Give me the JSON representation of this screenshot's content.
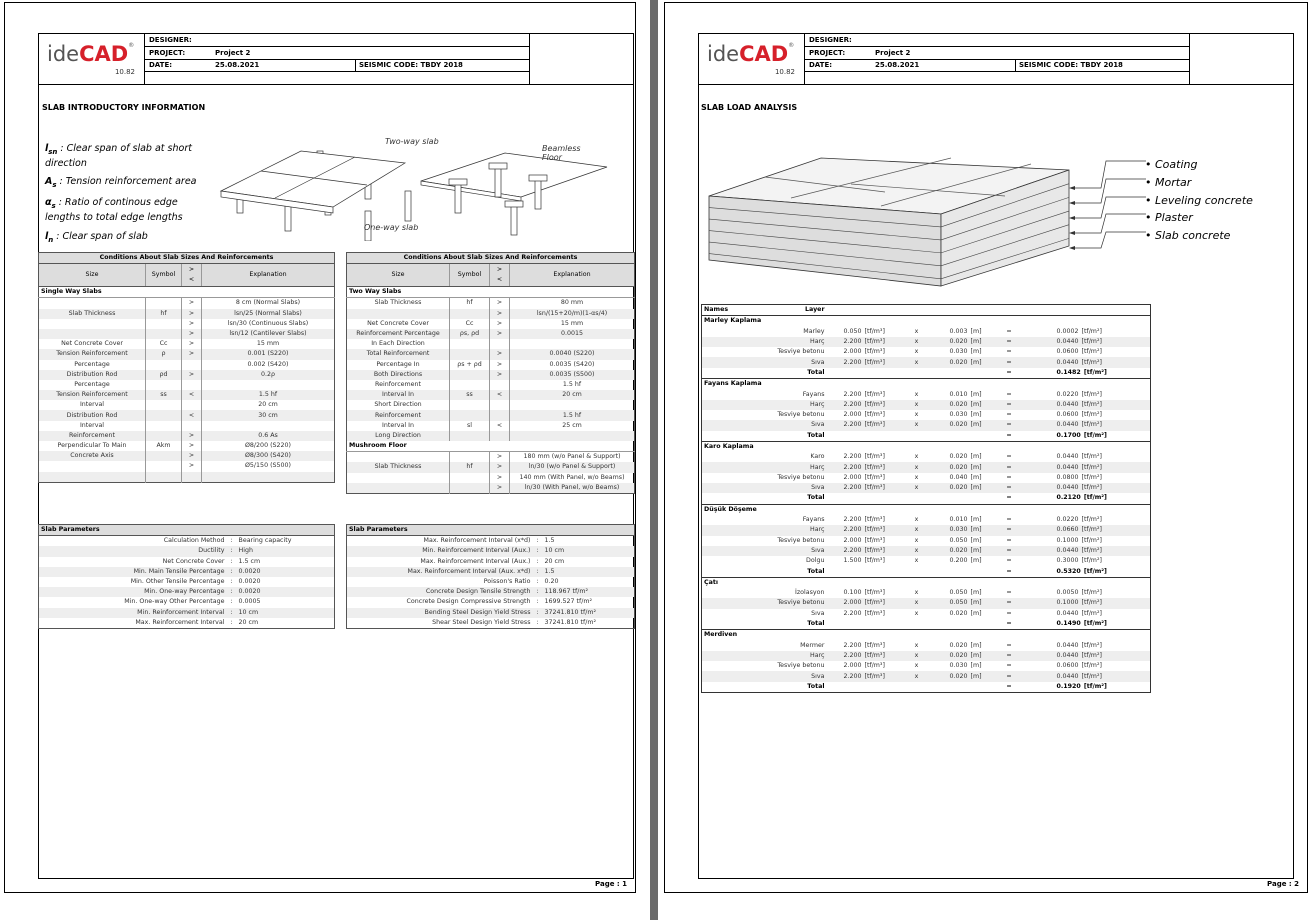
{
  "header": {
    "designer_label": "DESIGNER:",
    "project_label": "PROJECT:",
    "project": "Project 2",
    "date_label": "DATE:",
    "date": "25.08.2021",
    "seismic": "SEISMIC CODE: TBDY 2018"
  },
  "logo": {
    "prefix": "ide",
    "brand": "CAD",
    "mark": "®",
    "version": "10.82"
  },
  "page1": {
    "title": "SLAB INTRODUCTORY INFORMATION",
    "footer": "Page : 1",
    "definitions": [
      {
        "symbol": "l",
        "sub": "sn",
        "text": ": Clear span of slab at short direction"
      },
      {
        "symbol": "A",
        "sub": "s",
        "text": ": Tension reinforcement area"
      },
      {
        "symbol": "α",
        "sub": "s",
        "text": ": Ratio of continous edge lengths to total edge lengths"
      },
      {
        "symbol": "l",
        "sub": "n",
        "text": ": Clear span of slab"
      }
    ],
    "diagram_labels": [
      "Two-way slab",
      "Beamless Floor",
      "One-way slab"
    ],
    "conditions": [
      {
        "title": "Conditions About Slab Sizes And Reinforcements",
        "columns": [
          "Size",
          "Symbol",
          "> <",
          "Explanation"
        ],
        "section": "Single Way Slabs",
        "rows": [
          [
            "",
            "",
            ">",
            "8 cm (Normal Slabs)"
          ],
          [
            "Slab Thickness",
            "hf",
            ">",
            "lsn/25 (Normal Slabs)"
          ],
          [
            "",
            "",
            ">",
            "lsn/30 (Continuous Slabs)"
          ],
          [
            "",
            "",
            ">",
            "lsn/12 (Cantilever Slabs)"
          ],
          [
            "Net Concrete Cover",
            "Cc",
            ">",
            "15 mm"
          ],
          [
            "Tension Reinforcement",
            "ρ",
            ">",
            "0.001 (S220)"
          ],
          [
            "Percentage",
            "",
            "",
            "0.002 (S420)"
          ],
          [
            "Distribution Rod",
            "ρd",
            ">",
            "0.2ρ"
          ],
          [
            "Percentage",
            "",
            "",
            ""
          ],
          [
            "Tension Reinforcement",
            "ss",
            "<",
            "1.5 hf"
          ],
          [
            "Interval",
            "",
            "",
            "20 cm"
          ],
          [
            "Distribution Rod",
            "",
            "<",
            "30 cm"
          ],
          [
            "Interval",
            "",
            "",
            ""
          ],
          [
            "Reinforcement",
            "",
            ">",
            "0.6 As"
          ],
          [
            "Perpendicular To Main",
            "Akm",
            ">",
            "Ø8/200 (S220)"
          ],
          [
            "Concrete Axis",
            "",
            ">",
            "Ø8/300 (S420)"
          ],
          [
            "",
            "",
            ">",
            "Ø5/150 (S500)"
          ],
          [
            "",
            "",
            "",
            ""
          ]
        ]
      },
      {
        "title": "Conditions About Slab Sizes And Reinforcements",
        "columns": [
          "Size",
          "Symbol",
          "> <",
          "Explanation"
        ],
        "section": "Two Way Slabs",
        "rows": [
          [
            "Slab Thickness",
            "hf",
            ">",
            "80 mm"
          ],
          [
            "",
            "",
            ">",
            "lsn/(15+20/m)(1-αs/4)"
          ],
          [
            "Net Concrete Cover",
            "Cc",
            ">",
            "15 mm"
          ],
          [
            "Reinforcement Percentage",
            "ρs, ρd",
            ">",
            "0.0015"
          ],
          [
            "In Each Direction",
            "",
            "",
            ""
          ],
          [
            "Total Reinforcement",
            "",
            ">",
            "0.0040 (S220)"
          ],
          [
            "Percentage In",
            "ρs + ρd",
            ">",
            "0.0035 (S420)"
          ],
          [
            "Both Directions",
            "",
            ">",
            "0.0035 (S500)"
          ],
          [
            "Reinforcement",
            "",
            "",
            "1.5 hf"
          ],
          [
            "Interval In",
            "ss",
            "<",
            "20 cm"
          ],
          [
            "Short Direction",
            "",
            "",
            ""
          ],
          [
            "Reinforcement",
            "",
            "",
            "1.5 hf"
          ],
          [
            "Interval In",
            "sl",
            "<",
            "25 cm"
          ],
          [
            "Long Direction",
            "",
            "",
            ""
          ]
        ],
        "section2": "Mushroom Floor",
        "rows2": [
          [
            "",
            "",
            ">",
            "180 mm (w/o Panel & Support)"
          ],
          [
            "Slab Thickness",
            "hf",
            ">",
            "ln/30 (w/o Panel & Support)"
          ],
          [
            "",
            "",
            ">",
            "140 mm (With Panel, w/o Beams)"
          ],
          [
            "",
            "",
            ">",
            "ln/30 (With Panel, w/o Beams)"
          ]
        ]
      }
    ],
    "parameters": [
      {
        "title": "Slab Parameters",
        "separator": ":",
        "rows": [
          [
            "Calculation Method",
            "Bearing capacity"
          ],
          [
            "Ductility",
            "High"
          ],
          [
            "Net Concrete Cover",
            "1.5 cm"
          ],
          [
            "Min. Main Tensile Percentage",
            "0.0020"
          ],
          [
            "Min. Other Tensile Percentage",
            "0.0020"
          ],
          [
            "Min. One-way Percentage",
            "0.0020"
          ],
          [
            "Min. One-way Other Percentage",
            "0.0005"
          ],
          [
            "Min. Reinforcement Interval",
            "10 cm"
          ],
          [
            "Max. Reinforcement Interval",
            "20 cm"
          ]
        ]
      },
      {
        "title": "Slab Parameters",
        "separator": ":",
        "rows": [
          [
            "Max. Reinforcement Interval (x*d)",
            "1.5"
          ],
          [
            "Min. Reinforcement Interval (Aux.)",
            "10 cm"
          ],
          [
            "Max. Reinforcement Interval (Aux.)",
            "20 cm"
          ],
          [
            "Max. Reinforcement Interval (Aux. x*d)",
            "1.5"
          ],
          [
            "Poisson's Ratio",
            "0.20"
          ],
          [
            "Concrete Design Tensile Strength",
            "118.967 tf/m²"
          ],
          [
            "Concrete Design Compressive Strength",
            "1699.527 tf/m²"
          ],
          [
            "Bending Steel Design Yield Stress",
            "37241.810 tf/m²"
          ],
          [
            "Shear Steel Design Yield Stress",
            "37241.810 tf/m²"
          ]
        ]
      }
    ]
  },
  "page2": {
    "title": "SLAB LOAD ANALYSIS",
    "footer": "Page : 2",
    "layers": [
      "Coating",
      "Mortar",
      "Leveling concrete",
      "Plaster",
      "Slab concrete"
    ],
    "load_table": {
      "columns": [
        "Names",
        "Layer"
      ],
      "density_unit": "[tf/m³]",
      "thickness_unit": "[m]",
      "load_unit": "[tf/m²]",
      "times": "x",
      "equals": "=",
      "total_label": "Total",
      "groups": [
        {
          "name": "Marley Kaplama",
          "rows": [
            [
              "Marley",
              "0.050",
              "0.003",
              "0.0002"
            ],
            [
              "Harç",
              "2.200",
              "0.020",
              "0.0440"
            ],
            [
              "Tesviye betonu",
              "2.000",
              "0.030",
              "0.0600"
            ],
            [
              "Sıva",
              "2.200",
              "0.020",
              "0.0440"
            ]
          ],
          "total": "0.1482"
        },
        {
          "name": "Fayans Kaplama",
          "rows": [
            [
              "Fayans",
              "2.200",
              "0.010",
              "0.0220"
            ],
            [
              "Harç",
              "2.200",
              "0.020",
              "0.0440"
            ],
            [
              "Tesviye betonu",
              "2.000",
              "0.030",
              "0.0600"
            ],
            [
              "Sıva",
              "2.200",
              "0.020",
              "0.0440"
            ]
          ],
          "total": "0.1700"
        },
        {
          "name": "Karo Kaplama",
          "rows": [
            [
              "Karo",
              "2.200",
              "0.020",
              "0.0440"
            ],
            [
              "Harç",
              "2.200",
              "0.020",
              "0.0440"
            ],
            [
              "Tesviye betonu",
              "2.000",
              "0.040",
              "0.0800"
            ],
            [
              "Sıva",
              "2.200",
              "0.020",
              "0.0440"
            ]
          ],
          "total": "0.2120"
        },
        {
          "name": "Düşük Döşeme",
          "rows": [
            [
              "Fayans",
              "2.200",
              "0.010",
              "0.0220"
            ],
            [
              "Harç",
              "2.200",
              "0.030",
              "0.0660"
            ],
            [
              "Tesviye betonu",
              "2.000",
              "0.050",
              "0.1000"
            ],
            [
              "Sıva",
              "2.200",
              "0.020",
              "0.0440"
            ],
            [
              "Dolgu",
              "1.500",
              "0.200",
              "0.3000"
            ]
          ],
          "total": "0.5320"
        },
        {
          "name": "Çatı",
          "rows": [
            [
              "İzolasyon",
              "0.100",
              "0.050",
              "0.0050"
            ],
            [
              "Tesviye betonu",
              "2.000",
              "0.050",
              "0.1000"
            ],
            [
              "Sıva",
              "2.200",
              "0.020",
              "0.0440"
            ]
          ],
          "total": "0.1490"
        },
        {
          "name": "Merdiven",
          "rows": [
            [
              "Mermer",
              "2.200",
              "0.020",
              "0.0440"
            ],
            [
              "Harç",
              "2.200",
              "0.020",
              "0.0440"
            ],
            [
              "Tesviye betonu",
              "2.000",
              "0.030",
              "0.0600"
            ],
            [
              "Sıva",
              "2.200",
              "0.020",
              "0.0440"
            ]
          ],
          "total": "0.1920"
        }
      ]
    }
  }
}
